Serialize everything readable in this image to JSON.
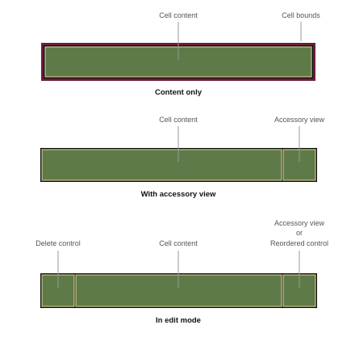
{
  "labels": {
    "cell_content": "Cell content",
    "cell_bounds": "Cell bounds",
    "accessory_view": "Accessory view",
    "or": "or",
    "reorder_control": "Reordered control",
    "delete_control": "Delete control"
  },
  "captions": {
    "content_only": "Content only",
    "with_accessory": "With accessory view",
    "edit_mode": "In edit mode"
  },
  "colors": {
    "cell_fill": "#5e7a48",
    "cell_stroke": "#e6dc9c",
    "cell_bounds": "#6a1d3c",
    "outline": "#111111"
  }
}
